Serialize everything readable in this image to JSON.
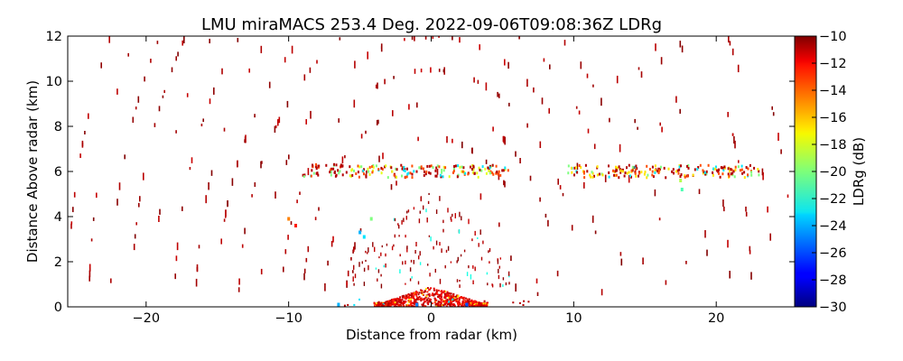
{
  "chart_data": {
    "type": "heatmap",
    "title": "LMU miraMACS 253.4 Deg. 2022-09-06T09:08:36Z  LDRg",
    "xlabel": "Distance from radar (km)",
    "ylabel": "Distance Above radar  (km)",
    "xlim": [
      -25.5,
      25.5
    ],
    "ylim": [
      0,
      12
    ],
    "xticks": [
      -20,
      -10,
      0,
      10,
      20
    ],
    "xtick_labels": [
      "−20",
      "−10",
      "0",
      "10",
      "20"
    ],
    "yticks": [
      0,
      2,
      4,
      6,
      8,
      10,
      12
    ],
    "ytick_labels": [
      "0",
      "2",
      "4",
      "6",
      "8",
      "10",
      "12"
    ],
    "colorbar": {
      "label": "LDRg (dB)",
      "colormap": "jet",
      "vmin": -30,
      "vmax": -10,
      "ticks": [
        -10,
        -12,
        -14,
        -16,
        -18,
        -20,
        -22,
        -24,
        -26,
        -28,
        -30
      ],
      "tick_labels": [
        "−10",
        "−12",
        "−14",
        "−16",
        "−18",
        "−20",
        "−22",
        "−24",
        "−26",
        "−28",
        "−30"
      ]
    },
    "features": {
      "cloud_layer": {
        "segments": [
          {
            "x_range": [
              -9,
              -6
            ],
            "height_km": 6.05,
            "ldr_db": -11
          },
          {
            "x_range": [
              -6,
              5.5
            ],
            "height_km": 6.0,
            "ldr_db": -18
          },
          {
            "x_range": [
              9.5,
              23
            ],
            "height_km": 6.0,
            "ldr_db": -17
          }
        ]
      },
      "near_ground_clutter": {
        "x_range": [
          -4,
          4
        ],
        "height_range_km": [
          0,
          0.9
        ],
        "ldr_db": -11
      },
      "scattered_echoes_ldr_db": -10
    }
  }
}
